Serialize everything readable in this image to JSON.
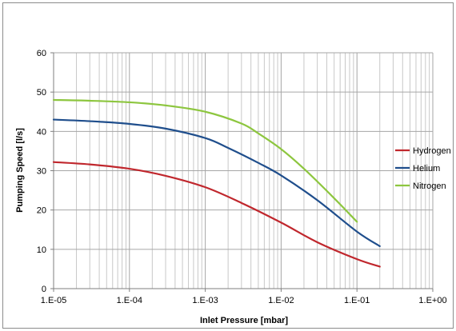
{
  "chart_data": {
    "type": "line",
    "title": "",
    "xlabel": "Inlet Pressure [mbar]",
    "ylabel": "Pumping Speed [l/s]",
    "x_scale": "log",
    "xlim": [
      1e-05,
      1
    ],
    "ylim": [
      0,
      60
    ],
    "x_ticks": [
      1e-05,
      0.0001,
      0.001,
      0.01,
      0.1,
      1
    ],
    "x_tick_labels": [
      "1.E-05",
      "1.E-04",
      "1.E-03",
      "1.E-02",
      "1.E-01",
      "1.E+00"
    ],
    "y_ticks": [
      0,
      10,
      20,
      30,
      40,
      50,
      60
    ],
    "y_tick_labels": [
      "0",
      "10",
      "20",
      "30",
      "40",
      "50",
      "60"
    ],
    "grid": true,
    "legend_position": "right",
    "series": [
      {
        "name": "Hydrogen",
        "color": "#c0272d",
        "x": [
          1e-05,
          3e-05,
          0.0001,
          0.0003,
          0.001,
          0.003,
          0.01,
          0.03,
          0.1,
          0.2
        ],
        "y": [
          32.2,
          31.6,
          30.5,
          28.7,
          25.8,
          21.8,
          16.8,
          11.8,
          7.5,
          5.6
        ]
      },
      {
        "name": "Helium",
        "color": "#1f4e8c",
        "x": [
          1e-05,
          3e-05,
          0.0001,
          0.0003,
          0.001,
          0.002,
          0.005,
          0.01,
          0.03,
          0.1,
          0.2
        ],
        "y": [
          43.0,
          42.6,
          41.9,
          40.7,
          38.3,
          35.8,
          32.0,
          28.8,
          22.5,
          14.5,
          10.8
        ]
      },
      {
        "name": "Nitrogen",
        "color": "#8dc63f",
        "x": [
          1e-05,
          3e-05,
          0.0001,
          0.0003,
          0.001,
          0.003,
          0.005,
          0.01,
          0.02,
          0.05,
          0.1
        ],
        "y": [
          48.0,
          47.8,
          47.4,
          46.6,
          45.0,
          42.0,
          39.5,
          35.5,
          30.5,
          23.0,
          17.0
        ]
      }
    ]
  }
}
